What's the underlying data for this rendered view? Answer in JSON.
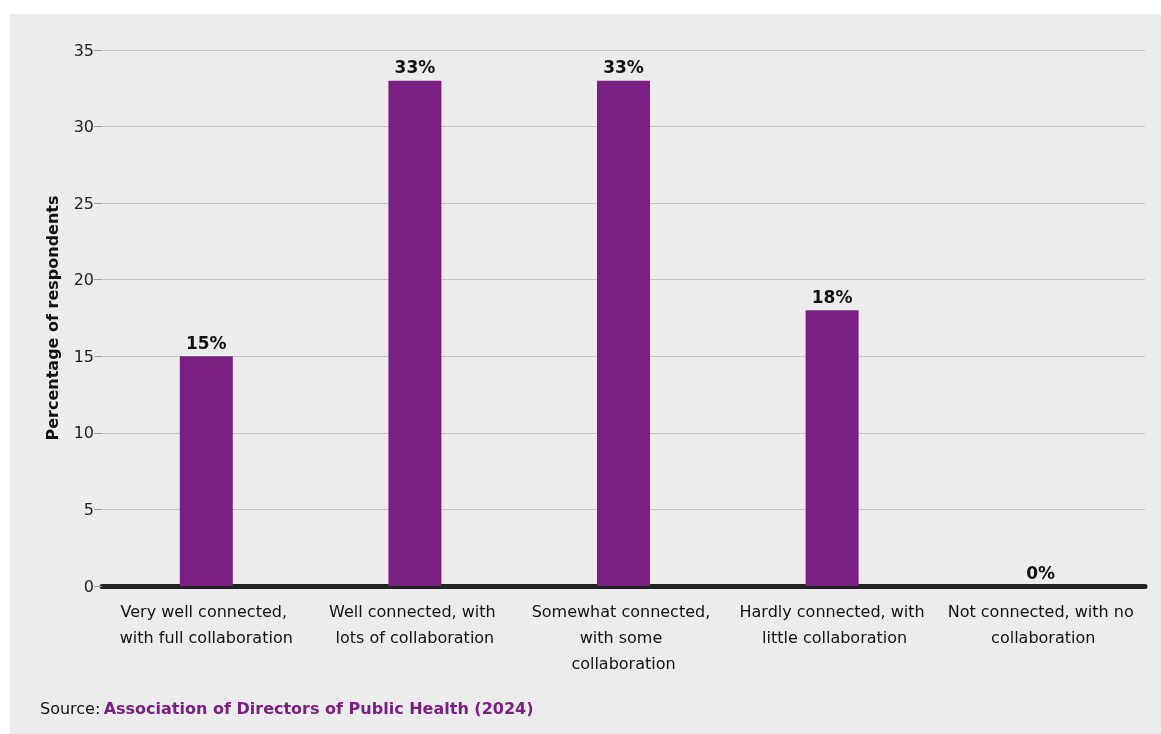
{
  "chart_data": {
    "type": "bar",
    "ylabel": "Percentage of respondents",
    "categories": [
      "Very well connected, with full collaboration",
      "Well connected, with lots of collaboration",
      "Somewhat connected, with some collaboration",
      "Hardly connected, with little collaboration",
      "Not connected, with no collaboration"
    ],
    "values": [
      15,
      33,
      33,
      18,
      0
    ],
    "color": "#7a1f82",
    "value_labels": [
      "15%",
      "33%",
      "33%",
      "18%",
      "0%"
    ],
    "ylim": [
      0,
      35
    ],
    "yticks": [
      0,
      5,
      10,
      15,
      20,
      25,
      30,
      35
    ],
    "grid": "y",
    "annotations": [
      "Source: Association of Directors of Public Health (2024)"
    ]
  }
}
